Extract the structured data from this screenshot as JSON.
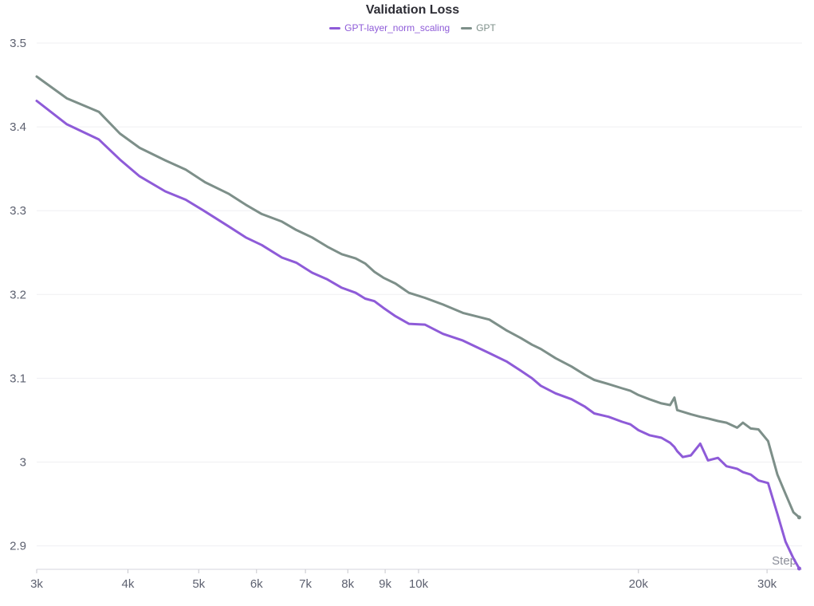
{
  "chart_data": {
    "type": "line",
    "title": "Validation Loss",
    "xlabel": "Step",
    "ylabel": "",
    "x_scale": "log",
    "xlim": [
      3000,
      33500
    ],
    "ylim": [
      2.872,
      3.5
    ],
    "x_ticks": [
      {
        "value": 3000,
        "label": "3k"
      },
      {
        "value": 4000,
        "label": "4k"
      },
      {
        "value": 5000,
        "label": "5k"
      },
      {
        "value": 6000,
        "label": "6k"
      },
      {
        "value": 7000,
        "label": "7k"
      },
      {
        "value": 8000,
        "label": "8k"
      },
      {
        "value": 9000,
        "label": "9k"
      },
      {
        "value": 10000,
        "label": "10k"
      },
      {
        "value": 20000,
        "label": "20k"
      },
      {
        "value": 30000,
        "label": "30k"
      }
    ],
    "y_ticks": [
      {
        "value": 2.9,
        "label": "2.9"
      },
      {
        "value": 3.0,
        "label": "3"
      },
      {
        "value": 3.1,
        "label": "3.1"
      },
      {
        "value": 3.2,
        "label": "3.2"
      },
      {
        "value": 3.3,
        "label": "3.3"
      },
      {
        "value": 3.4,
        "label": "3.4"
      },
      {
        "value": 3.5,
        "label": "3.5"
      }
    ],
    "grid": "horizontal",
    "legend_position": "top-center",
    "series": [
      {
        "name": "GPT-layer_norm_scaling",
        "color": "#8e5bd8",
        "x": [
          3000,
          3300,
          3650,
          3900,
          4150,
          4500,
          4800,
          5100,
          5500,
          5800,
          6100,
          6500,
          6800,
          7150,
          7500,
          7850,
          8200,
          8450,
          8700,
          8950,
          9300,
          9700,
          10200,
          10800,
          11500,
          12500,
          13200,
          13800,
          14300,
          14700,
          15400,
          16200,
          16900,
          17400,
          18200,
          19000,
          19500,
          20000,
          20700,
          21500,
          22100,
          22400,
          22600,
          23000,
          23600,
          24300,
          24900,
          25700,
          26400,
          27300,
          27800,
          28500,
          29200,
          30100,
          31000,
          31800,
          32600,
          33200
        ],
        "values": [
          3.431,
          3.403,
          3.385,
          3.361,
          3.341,
          3.323,
          3.313,
          3.299,
          3.281,
          3.268,
          3.259,
          3.244,
          3.238,
          3.226,
          3.218,
          3.208,
          3.202,
          3.195,
          3.192,
          3.184,
          3.174,
          3.165,
          3.164,
          3.153,
          3.145,
          3.13,
          3.12,
          3.109,
          3.1,
          3.091,
          3.082,
          3.075,
          3.066,
          3.058,
          3.054,
          3.048,
          3.045,
          3.038,
          3.032,
          3.029,
          3.023,
          3.018,
          3.013,
          3.006,
          3.008,
          3.022,
          3.002,
          3.005,
          2.995,
          2.992,
          2.988,
          2.985,
          2.978,
          2.975,
          2.938,
          2.905,
          2.885,
          2.873
        ]
      },
      {
        "name": "GPT",
        "color": "#7d8f89",
        "x": [
          3000,
          3300,
          3650,
          3900,
          4150,
          4500,
          4800,
          5100,
          5500,
          5800,
          6100,
          6500,
          6800,
          7150,
          7500,
          7850,
          8200,
          8450,
          8700,
          8950,
          9300,
          9700,
          10200,
          10800,
          11500,
          12500,
          13200,
          13800,
          14300,
          14700,
          15400,
          16200,
          16900,
          17400,
          18200,
          19000,
          19500,
          20000,
          20700,
          21500,
          22100,
          22400,
          22600,
          23000,
          23600,
          24300,
          24900,
          25700,
          26400,
          27300,
          27800,
          28500,
          29200,
          30100,
          31000,
          31800,
          32600,
          33200
        ],
        "values": [
          3.46,
          3.434,
          3.418,
          3.392,
          3.375,
          3.36,
          3.349,
          3.334,
          3.32,
          3.307,
          3.296,
          3.287,
          3.277,
          3.268,
          3.257,
          3.248,
          3.243,
          3.237,
          3.227,
          3.22,
          3.213,
          3.202,
          3.196,
          3.188,
          3.178,
          3.17,
          3.157,
          3.148,
          3.14,
          3.135,
          3.124,
          3.114,
          3.104,
          3.098,
          3.093,
          3.088,
          3.085,
          3.08,
          3.075,
          3.07,
          3.068,
          3.077,
          3.062,
          3.06,
          3.057,
          3.054,
          3.052,
          3.049,
          3.047,
          3.041,
          3.047,
          3.04,
          3.039,
          3.025,
          2.985,
          2.962,
          2.94,
          2.934
        ]
      }
    ]
  }
}
